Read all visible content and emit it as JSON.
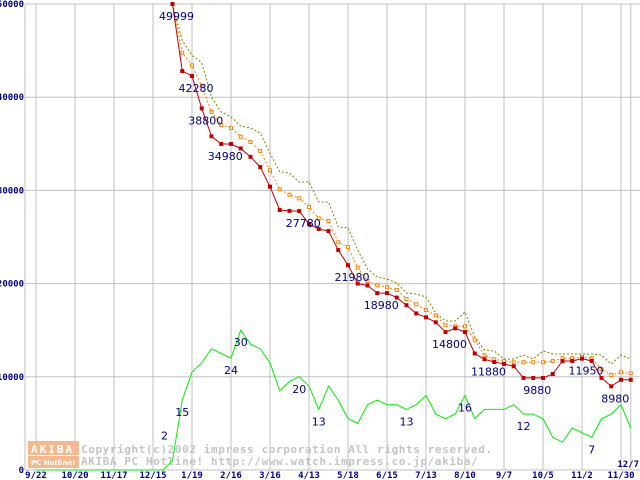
{
  "chart_data": {
    "type": "line",
    "title": "",
    "xlabel": "",
    "ylabel": "",
    "ylim": [
      0,
      50000
    ],
    "y_ticks": [
      "0",
      "10000",
      "20000",
      "30000",
      "40000",
      "50000"
    ],
    "x_range": [
      0,
      61
    ],
    "x_ticks": [
      {
        "i": 0,
        "label": "9/22"
      },
      {
        "i": 4,
        "label": "10/20"
      },
      {
        "i": 8,
        "label": "11/17"
      },
      {
        "i": 12,
        "label": "12/15"
      },
      {
        "i": 16,
        "label": "1/19"
      },
      {
        "i": 20,
        "label": "2/16"
      },
      {
        "i": 24,
        "label": "3/16"
      },
      {
        "i": 28,
        "label": "4/13"
      },
      {
        "i": 32,
        "label": "5/18"
      },
      {
        "i": 36,
        "label": "6/15"
      },
      {
        "i": 40,
        "label": "7/13"
      },
      {
        "i": 44,
        "label": "8/10"
      },
      {
        "i": 48,
        "label": "9/7"
      },
      {
        "i": 52,
        "label": "10/5"
      },
      {
        "i": 56,
        "label": "11/2"
      },
      {
        "i": 60,
        "label": "11/30"
      },
      {
        "i": 61,
        "label": "12/7"
      }
    ],
    "grid": true,
    "series": [
      {
        "name": "max-price",
        "color": "#808000",
        "style": "dotted",
        "marker": "none",
        "start": 14,
        "values": [
          49999,
          46100,
          44500,
          43700,
          40000,
          38400,
          37900,
          36900,
          36700,
          36160,
          34000,
          32000,
          31870,
          30900,
          30900,
          28760,
          28760,
          26070,
          26000,
          23600,
          21570,
          20700,
          20490,
          20060,
          18990,
          18880,
          18560,
          16850,
          15990,
          15990,
          16950,
          14270,
          12880,
          12770,
          11910,
          11910,
          12340,
          11910,
          12770,
          12450,
          12450,
          12450,
          12450,
          12450,
          12340,
          11370,
          12340,
          11910
        ]
      },
      {
        "name": "average-price",
        "color": "#ff8000",
        "style": "dotted",
        "marker": "hollow-square",
        "start": 14,
        "values": [
          49999,
          44770,
          43420,
          41200,
          38410,
          37020,
          36700,
          35760,
          35190,
          34230,
          32160,
          30120,
          29540,
          29150,
          28220,
          27000,
          26720,
          24430,
          23930,
          21710,
          20280,
          19820,
          19600,
          19310,
          18350,
          17780,
          17170,
          16600,
          15530,
          15420,
          15420,
          13920,
          12310,
          11880,
          11700,
          11560,
          11560,
          11560,
          11560,
          11700,
          11990,
          11990,
          12120,
          11990,
          10800,
          10190,
          10480,
          10380
        ]
      },
      {
        "name": "min-price",
        "color": "#c00000",
        "style": "solid",
        "marker": "filled-square",
        "start": 14,
        "values": [
          49999,
          42800,
          42280,
          38800,
          35800,
          34980,
          34980,
          34500,
          33600,
          32500,
          30400,
          27900,
          27800,
          27780,
          26400,
          25860,
          25640,
          23600,
          21980,
          20000,
          19800,
          18980,
          18980,
          18500,
          17680,
          16800,
          16380,
          15850,
          14800,
          15200,
          14800,
          12500,
          11880,
          11580,
          11380,
          11130,
          9880,
          9880,
          9880,
          10300,
          11700,
          11700,
          11950,
          11700,
          9880,
          8980,
          9680,
          9680
        ]
      },
      {
        "name": "shop-count",
        "color": "#00ee00",
        "style": "solid",
        "marker": "none",
        "start": 0,
        "y_scale": 500,
        "values": [
          0,
          0,
          0,
          0,
          0,
          0,
          0,
          0,
          0,
          0,
          0,
          0,
          0,
          0,
          2,
          15,
          21,
          23,
          26,
          25,
          24,
          30,
          27,
          26,
          23,
          17,
          19,
          20,
          18,
          13,
          18,
          15,
          11,
          10,
          14,
          15,
          14,
          14,
          13,
          14,
          16,
          12,
          11,
          12,
          16,
          11,
          13,
          13,
          13,
          14,
          12,
          12,
          11,
          7,
          6,
          9,
          8,
          7,
          11,
          12,
          14,
          9
        ]
      }
    ],
    "annotations": [
      {
        "series": "min-price",
        "i": 14,
        "text": "49999"
      },
      {
        "series": "min-price",
        "i": 16,
        "text": "42280"
      },
      {
        "series": "min-price",
        "i": 17,
        "text": "38800"
      },
      {
        "series": "min-price",
        "i": 19,
        "text": "34980"
      },
      {
        "series": "min-price",
        "i": 27,
        "text": "27780"
      },
      {
        "series": "min-price",
        "i": 32,
        "text": "21980"
      },
      {
        "series": "min-price",
        "i": 35,
        "text": "18980"
      },
      {
        "series": "min-price",
        "i": 42,
        "text": "14800"
      },
      {
        "series": "min-price",
        "i": 46,
        "text": "11880"
      },
      {
        "series": "min-price",
        "i": 51,
        "text": "9880"
      },
      {
        "series": "min-price",
        "i": 56,
        "text": "11950"
      },
      {
        "series": "min-price",
        "i": 59,
        "text": "8980"
      },
      {
        "series": "shop-count",
        "i": 14,
        "text": "2"
      },
      {
        "series": "shop-count",
        "i": 15,
        "text": "15"
      },
      {
        "series": "shop-count",
        "i": 20,
        "text": "24"
      },
      {
        "series": "shop-count",
        "i": 21,
        "text": "30"
      },
      {
        "series": "shop-count",
        "i": 27,
        "text": "20"
      },
      {
        "series": "shop-count",
        "i": 29,
        "text": "13"
      },
      {
        "series": "shop-count",
        "i": 38,
        "text": "13"
      },
      {
        "series": "shop-count",
        "i": 44,
        "text": "16"
      },
      {
        "series": "shop-count",
        "i": 50,
        "text": "12"
      },
      {
        "series": "shop-count",
        "i": 57,
        "text": "7"
      }
    ]
  },
  "watermark": {
    "logo_top": "AKIBA",
    "logo_bottom": "PC Hotline!",
    "line1": "Copyright(c)2002 impress corporation All rights reserved.",
    "line2": "AKIBA PC Hotline!  http://www.watch.impress.co.jp/akiba/",
    "logo_color": "#f4b890"
  }
}
